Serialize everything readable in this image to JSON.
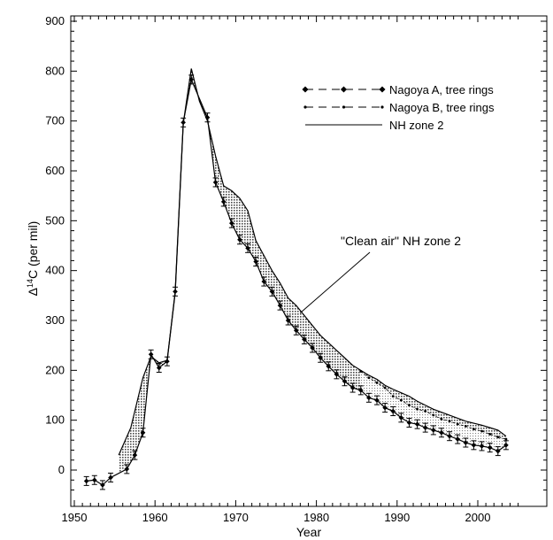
{
  "chart_data": {
    "type": "line",
    "title": "",
    "xlabel": "Year",
    "ylabel": "Δ14C (per mil)",
    "xlim": [
      1950,
      2005
    ],
    "ylim": [
      -50,
      900
    ],
    "xticks": [
      1950,
      1960,
      1970,
      1980,
      1990,
      2000
    ],
    "yticks": [
      0,
      100,
      200,
      300,
      400,
      500,
      600,
      700,
      800,
      900
    ],
    "legend_position": "top-right",
    "grid": false,
    "series": [
      {
        "name": "Nagoya A, tree rings",
        "style": "dashed-diamond",
        "x": [
          1951.5,
          1952.5,
          1953.5,
          1954.5,
          1956.5,
          1957.5,
          1958.5,
          1959.5,
          1960.5,
          1961.5,
          1962.5,
          1963.5,
          1964.5,
          1966.5,
          1967.5,
          1968.5,
          1969.5,
          1970.5,
          1971.5,
          1972.5,
          1973.5,
          1974.5,
          1975.5,
          1976.5,
          1977.5,
          1978.5,
          1979.5,
          1980.5,
          1981.5,
          1982.5,
          1983.5,
          1984.5,
          1985.5,
          1986.5,
          1987.5,
          1988.5,
          1989.5,
          1990.5,
          1991.5,
          1992.5,
          1993.5,
          1994.5,
          1995.5,
          1996.5,
          1997.5,
          1998.5,
          1999.5,
          2000.5,
          2001.5,
          2002.5,
          2003.5
        ],
        "y": [
          -22,
          -20,
          -30,
          -15,
          2,
          30,
          75,
          232,
          205,
          218,
          358,
          697,
          783,
          707,
          577,
          538,
          495,
          462,
          445,
          418,
          378,
          358,
          330,
          300,
          280,
          262,
          245,
          225,
          208,
          192,
          178,
          165,
          160,
          145,
          140,
          125,
          118,
          105,
          95,
          92,
          85,
          80,
          75,
          68,
          62,
          55,
          50,
          48,
          45,
          38,
          50
        ]
      },
      {
        "name": "Nagoya B, tree rings",
        "style": "dashed-dot",
        "x": [
          1985.5,
          1986.5,
          1987.5,
          1988.5,
          1989.5,
          1990.5,
          1991.5,
          1992.5,
          1993.5,
          1994.5,
          1995.5,
          1996.5,
          1997.5,
          1998.5,
          1999.5,
          2000.5,
          2001.5,
          2002.5,
          2003.5
        ],
        "y": [
          198,
          185,
          175,
          165,
          148,
          140,
          130,
          122,
          118,
          110,
          102,
          98,
          92,
          88,
          82,
          78,
          72,
          66,
          62
        ]
      },
      {
        "name": "NH zone 2",
        "style": "solid",
        "x": [
          1955.5,
          1957,
          1958.5,
          1959.5,
          1960.5,
          1961.5,
          1962.5,
          1963.5,
          1964.5,
          1965.5,
          1966.5,
          1967.5,
          1968.5,
          1969.5,
          1970.5,
          1971.5,
          1972.5,
          1973.5,
          1974.5,
          1975.5,
          1976.5,
          1977.5,
          1978.5,
          1979.5,
          1980.5,
          1981.5,
          1982.5,
          1983.5,
          1984.5,
          1985.5,
          1986.5,
          1987.5,
          1988.5,
          1989.5,
          1990.5,
          1991.5,
          1992.5,
          1993.5,
          1994.5,
          1995.5,
          1996.5,
          1997.5,
          1998.5,
          1999.5,
          2000.5,
          2001.5,
          2002.5,
          2003.5
        ],
        "y": [
          30,
          85,
          185,
          228,
          215,
          220,
          355,
          695,
          805,
          740,
          700,
          630,
          570,
          560,
          545,
          520,
          460,
          430,
          400,
          375,
          345,
          330,
          310,
          290,
          270,
          255,
          240,
          225,
          210,
          200,
          190,
          182,
          170,
          162,
          155,
          148,
          138,
          130,
          122,
          116,
          110,
          104,
          98,
          94,
          90,
          85,
          80,
          68
        ]
      }
    ],
    "annotations": [
      {
        "text": "\"Clean air\" NH zone 2",
        "points_to_x": 1978,
        "points_to_y": 315
      }
    ]
  }
}
